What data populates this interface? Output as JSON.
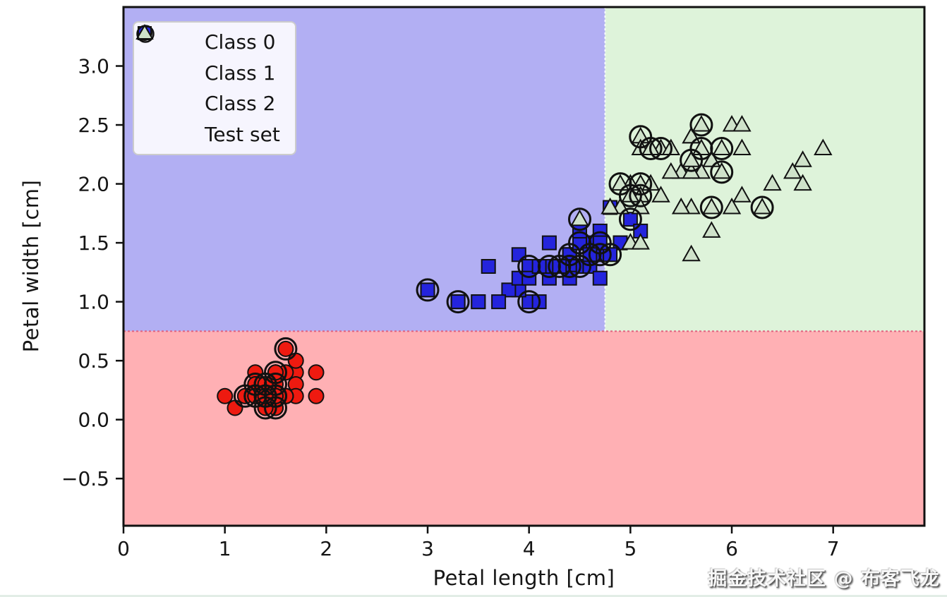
{
  "watermark": "掘金技术社区 @ 布客飞龙",
  "chart_data": {
    "type": "scatter",
    "title": "",
    "xlabel": "Petal length [cm]",
    "ylabel": "Petal width [cm]",
    "xlim": [
      0,
      7.9
    ],
    "ylim": [
      -0.9,
      3.5
    ],
    "grid": false,
    "legend_position": "upper left",
    "x_ticks": [
      0,
      1,
      2,
      3,
      4,
      5,
      6,
      7
    ],
    "x_tick_labels": [
      "0",
      "1",
      "2",
      "3",
      "4",
      "5",
      "6",
      "7"
    ],
    "y_ticks": [
      -0.5,
      0.0,
      0.5,
      1.0,
      1.5,
      2.0,
      2.5,
      3.0
    ],
    "y_tick_labels": [
      "−0.5",
      "0.0",
      "0.5",
      "1.0",
      "1.5",
      "2.0",
      "2.5",
      "3.0"
    ],
    "decision_regions": {
      "width_threshold": 0.75,
      "length_threshold": 4.75,
      "red_region": {
        "color": "#ffb0b4",
        "rule": "petal width < 0.75"
      },
      "blue_region": {
        "color": "#b2aff3",
        "rule": "petal width >= 0.75 and petal length < 4.75"
      },
      "green_region": {
        "color": "#def3da",
        "rule": "petal width >= 0.75 and petal length >= 4.75"
      },
      "h_boundary_color": "#e0607e",
      "v_boundary_color": "#ffffff"
    },
    "legend": [
      {
        "label": "Class 0",
        "marker": "circle",
        "color": "#ee1a10"
      },
      {
        "label": "Class 1",
        "marker": "square",
        "color": "#2424dd"
      },
      {
        "label": "Class 2",
        "marker": "triangle",
        "color": "#cfe2ca"
      },
      {
        "label": "Test set",
        "marker": "open-circle",
        "color": "#111111"
      }
    ],
    "marker_edge_color": "#111111",
    "series": [
      {
        "name": "Class 0",
        "marker": "circle",
        "color": "#ee1a10",
        "points": [
          [
            1.4,
            0.2
          ],
          [
            1.4,
            0.2
          ],
          [
            1.3,
            0.2
          ],
          [
            1.5,
            0.2
          ],
          [
            1.4,
            0.2
          ],
          [
            1.7,
            0.4
          ],
          [
            1.4,
            0.3
          ],
          [
            1.5,
            0.2
          ],
          [
            1.4,
            0.2
          ],
          [
            1.5,
            0.1
          ],
          [
            1.5,
            0.2
          ],
          [
            1.6,
            0.2
          ],
          [
            1.4,
            0.1
          ],
          [
            1.1,
            0.1
          ],
          [
            1.2,
            0.2
          ],
          [
            1.5,
            0.4
          ],
          [
            1.3,
            0.4
          ],
          [
            1.4,
            0.3
          ],
          [
            1.7,
            0.3
          ],
          [
            1.5,
            0.3
          ],
          [
            1.7,
            0.2
          ],
          [
            1.5,
            0.4
          ],
          [
            1.0,
            0.2
          ],
          [
            1.7,
            0.5
          ],
          [
            1.9,
            0.2
          ],
          [
            1.6,
            0.2
          ],
          [
            1.6,
            0.4
          ],
          [
            1.5,
            0.2
          ],
          [
            1.4,
            0.2
          ],
          [
            1.6,
            0.2
          ],
          [
            1.6,
            0.2
          ],
          [
            1.5,
            0.4
          ],
          [
            1.5,
            0.1
          ],
          [
            1.4,
            0.2
          ],
          [
            1.5,
            0.2
          ],
          [
            1.2,
            0.2
          ],
          [
            1.3,
            0.2
          ],
          [
            1.4,
            0.1
          ],
          [
            1.3,
            0.2
          ],
          [
            1.5,
            0.2
          ],
          [
            1.3,
            0.3
          ],
          [
            1.3,
            0.3
          ],
          [
            1.3,
            0.2
          ],
          [
            1.6,
            0.6
          ],
          [
            1.9,
            0.4
          ],
          [
            1.4,
            0.3
          ],
          [
            1.6,
            0.2
          ],
          [
            1.4,
            0.2
          ],
          [
            1.5,
            0.2
          ],
          [
            1.4,
            0.2
          ]
        ]
      },
      {
        "name": "Class 1",
        "marker": "square",
        "color": "#2424dd",
        "points": [
          [
            4.7,
            1.4
          ],
          [
            4.5,
            1.5
          ],
          [
            4.9,
            1.5
          ],
          [
            4.0,
            1.3
          ],
          [
            4.6,
            1.5
          ],
          [
            4.5,
            1.3
          ],
          [
            4.7,
            1.6
          ],
          [
            3.3,
            1.0
          ],
          [
            4.6,
            1.3
          ],
          [
            3.9,
            1.4
          ],
          [
            3.5,
            1.0
          ],
          [
            4.2,
            1.5
          ],
          [
            4.0,
            1.0
          ],
          [
            4.7,
            1.4
          ],
          [
            3.6,
            1.3
          ],
          [
            4.4,
            1.4
          ],
          [
            4.5,
            1.5
          ],
          [
            4.1,
            1.0
          ],
          [
            4.5,
            1.5
          ],
          [
            3.9,
            1.1
          ],
          [
            4.8,
            1.8
          ],
          [
            4.0,
            1.3
          ],
          [
            4.9,
            1.5
          ],
          [
            4.7,
            1.2
          ],
          [
            4.3,
            1.3
          ],
          [
            4.4,
            1.4
          ],
          [
            4.8,
            1.4
          ],
          [
            5.0,
            1.7
          ],
          [
            4.5,
            1.5
          ],
          [
            3.5,
            1.0
          ],
          [
            3.8,
            1.1
          ],
          [
            3.7,
            1.0
          ],
          [
            3.9,
            1.2
          ],
          [
            5.1,
            1.6
          ],
          [
            4.5,
            1.5
          ],
          [
            4.5,
            1.6
          ],
          [
            4.7,
            1.5
          ],
          [
            4.4,
            1.3
          ],
          [
            4.1,
            1.3
          ],
          [
            4.0,
            1.3
          ],
          [
            4.4,
            1.2
          ],
          [
            4.6,
            1.4
          ],
          [
            4.0,
            1.2
          ],
          [
            3.3,
            1.0
          ],
          [
            4.2,
            1.3
          ],
          [
            4.2,
            1.2
          ],
          [
            4.2,
            1.3
          ],
          [
            4.3,
            1.3
          ],
          [
            3.0,
            1.1
          ],
          [
            4.1,
            1.3
          ]
        ]
      },
      {
        "name": "Class 2",
        "marker": "triangle",
        "color": "#cfe2ca",
        "points": [
          [
            6.0,
            2.5
          ],
          [
            5.1,
            1.9
          ],
          [
            5.9,
            2.1
          ],
          [
            5.6,
            1.8
          ],
          [
            5.8,
            2.2
          ],
          [
            6.6,
            2.1
          ],
          [
            4.5,
            1.7
          ],
          [
            6.3,
            1.8
          ],
          [
            5.8,
            1.8
          ],
          [
            6.1,
            2.5
          ],
          [
            5.1,
            2.0
          ],
          [
            5.3,
            1.9
          ],
          [
            5.5,
            2.1
          ],
          [
            5.0,
            2.0
          ],
          [
            5.1,
            2.4
          ],
          [
            5.3,
            2.3
          ],
          [
            5.5,
            1.8
          ],
          [
            6.7,
            2.2
          ],
          [
            6.9,
            2.3
          ],
          [
            5.0,
            1.5
          ],
          [
            5.7,
            2.3
          ],
          [
            4.9,
            2.0
          ],
          [
            6.7,
            2.0
          ],
          [
            4.9,
            1.8
          ],
          [
            5.7,
            2.1
          ],
          [
            6.0,
            1.8
          ],
          [
            4.8,
            1.8
          ],
          [
            4.9,
            1.8
          ],
          [
            5.6,
            2.1
          ],
          [
            5.8,
            1.6
          ],
          [
            6.1,
            1.9
          ],
          [
            6.4,
            2.0
          ],
          [
            5.6,
            2.2
          ],
          [
            5.1,
            1.5
          ],
          [
            5.6,
            1.4
          ],
          [
            6.1,
            2.3
          ],
          [
            5.6,
            2.4
          ],
          [
            5.5,
            1.8
          ],
          [
            4.8,
            1.8
          ],
          [
            5.4,
            2.1
          ],
          [
            5.6,
            2.4
          ],
          [
            5.1,
            2.3
          ],
          [
            5.1,
            1.9
          ],
          [
            5.9,
            2.3
          ],
          [
            5.7,
            2.5
          ],
          [
            5.2,
            2.3
          ],
          [
            5.0,
            1.9
          ],
          [
            5.2,
            2.0
          ],
          [
            5.4,
            2.3
          ],
          [
            5.1,
            1.8
          ]
        ]
      }
    ],
    "test_points": [
      [
        1.6,
        0.6
      ],
      [
        1.5,
        0.4
      ],
      [
        1.4,
        0.3
      ],
      [
        1.4,
        0.3
      ],
      [
        1.4,
        0.2
      ],
      [
        1.4,
        0.2
      ],
      [
        1.5,
        0.2
      ],
      [
        1.5,
        0.2
      ],
      [
        1.3,
        0.2
      ],
      [
        1.3,
        0.2
      ],
      [
        1.5,
        0.1
      ],
      [
        1.4,
        0.1
      ],
      [
        1.3,
        0.3
      ],
      [
        1.2,
        0.2
      ],
      [
        1.5,
        0.3
      ],
      [
        3.0,
        1.1
      ],
      [
        3.3,
        1.0
      ],
      [
        4.0,
        1.0
      ],
      [
        4.0,
        1.3
      ],
      [
        4.2,
        1.3
      ],
      [
        4.3,
        1.3
      ],
      [
        4.4,
        1.3
      ],
      [
        4.5,
        1.5
      ],
      [
        4.6,
        1.4
      ],
      [
        4.7,
        1.4
      ],
      [
        4.4,
        1.4
      ],
      [
        4.8,
        1.4
      ],
      [
        4.5,
        1.3
      ],
      [
        4.7,
        1.5
      ],
      [
        5.0,
        1.7
      ],
      [
        4.5,
        1.7
      ],
      [
        5.7,
        2.5
      ],
      [
        5.7,
        2.3
      ],
      [
        5.1,
        2.4
      ],
      [
        5.2,
        2.3
      ],
      [
        5.3,
        2.3
      ],
      [
        4.9,
        2.0
      ],
      [
        5.1,
        2.0
      ],
      [
        5.0,
        1.9
      ],
      [
        5.1,
        1.9
      ],
      [
        5.8,
        1.8
      ],
      [
        6.3,
        1.8
      ],
      [
        5.9,
        2.1
      ],
      [
        5.6,
        2.2
      ],
      [
        5.9,
        2.3
      ]
    ]
  }
}
